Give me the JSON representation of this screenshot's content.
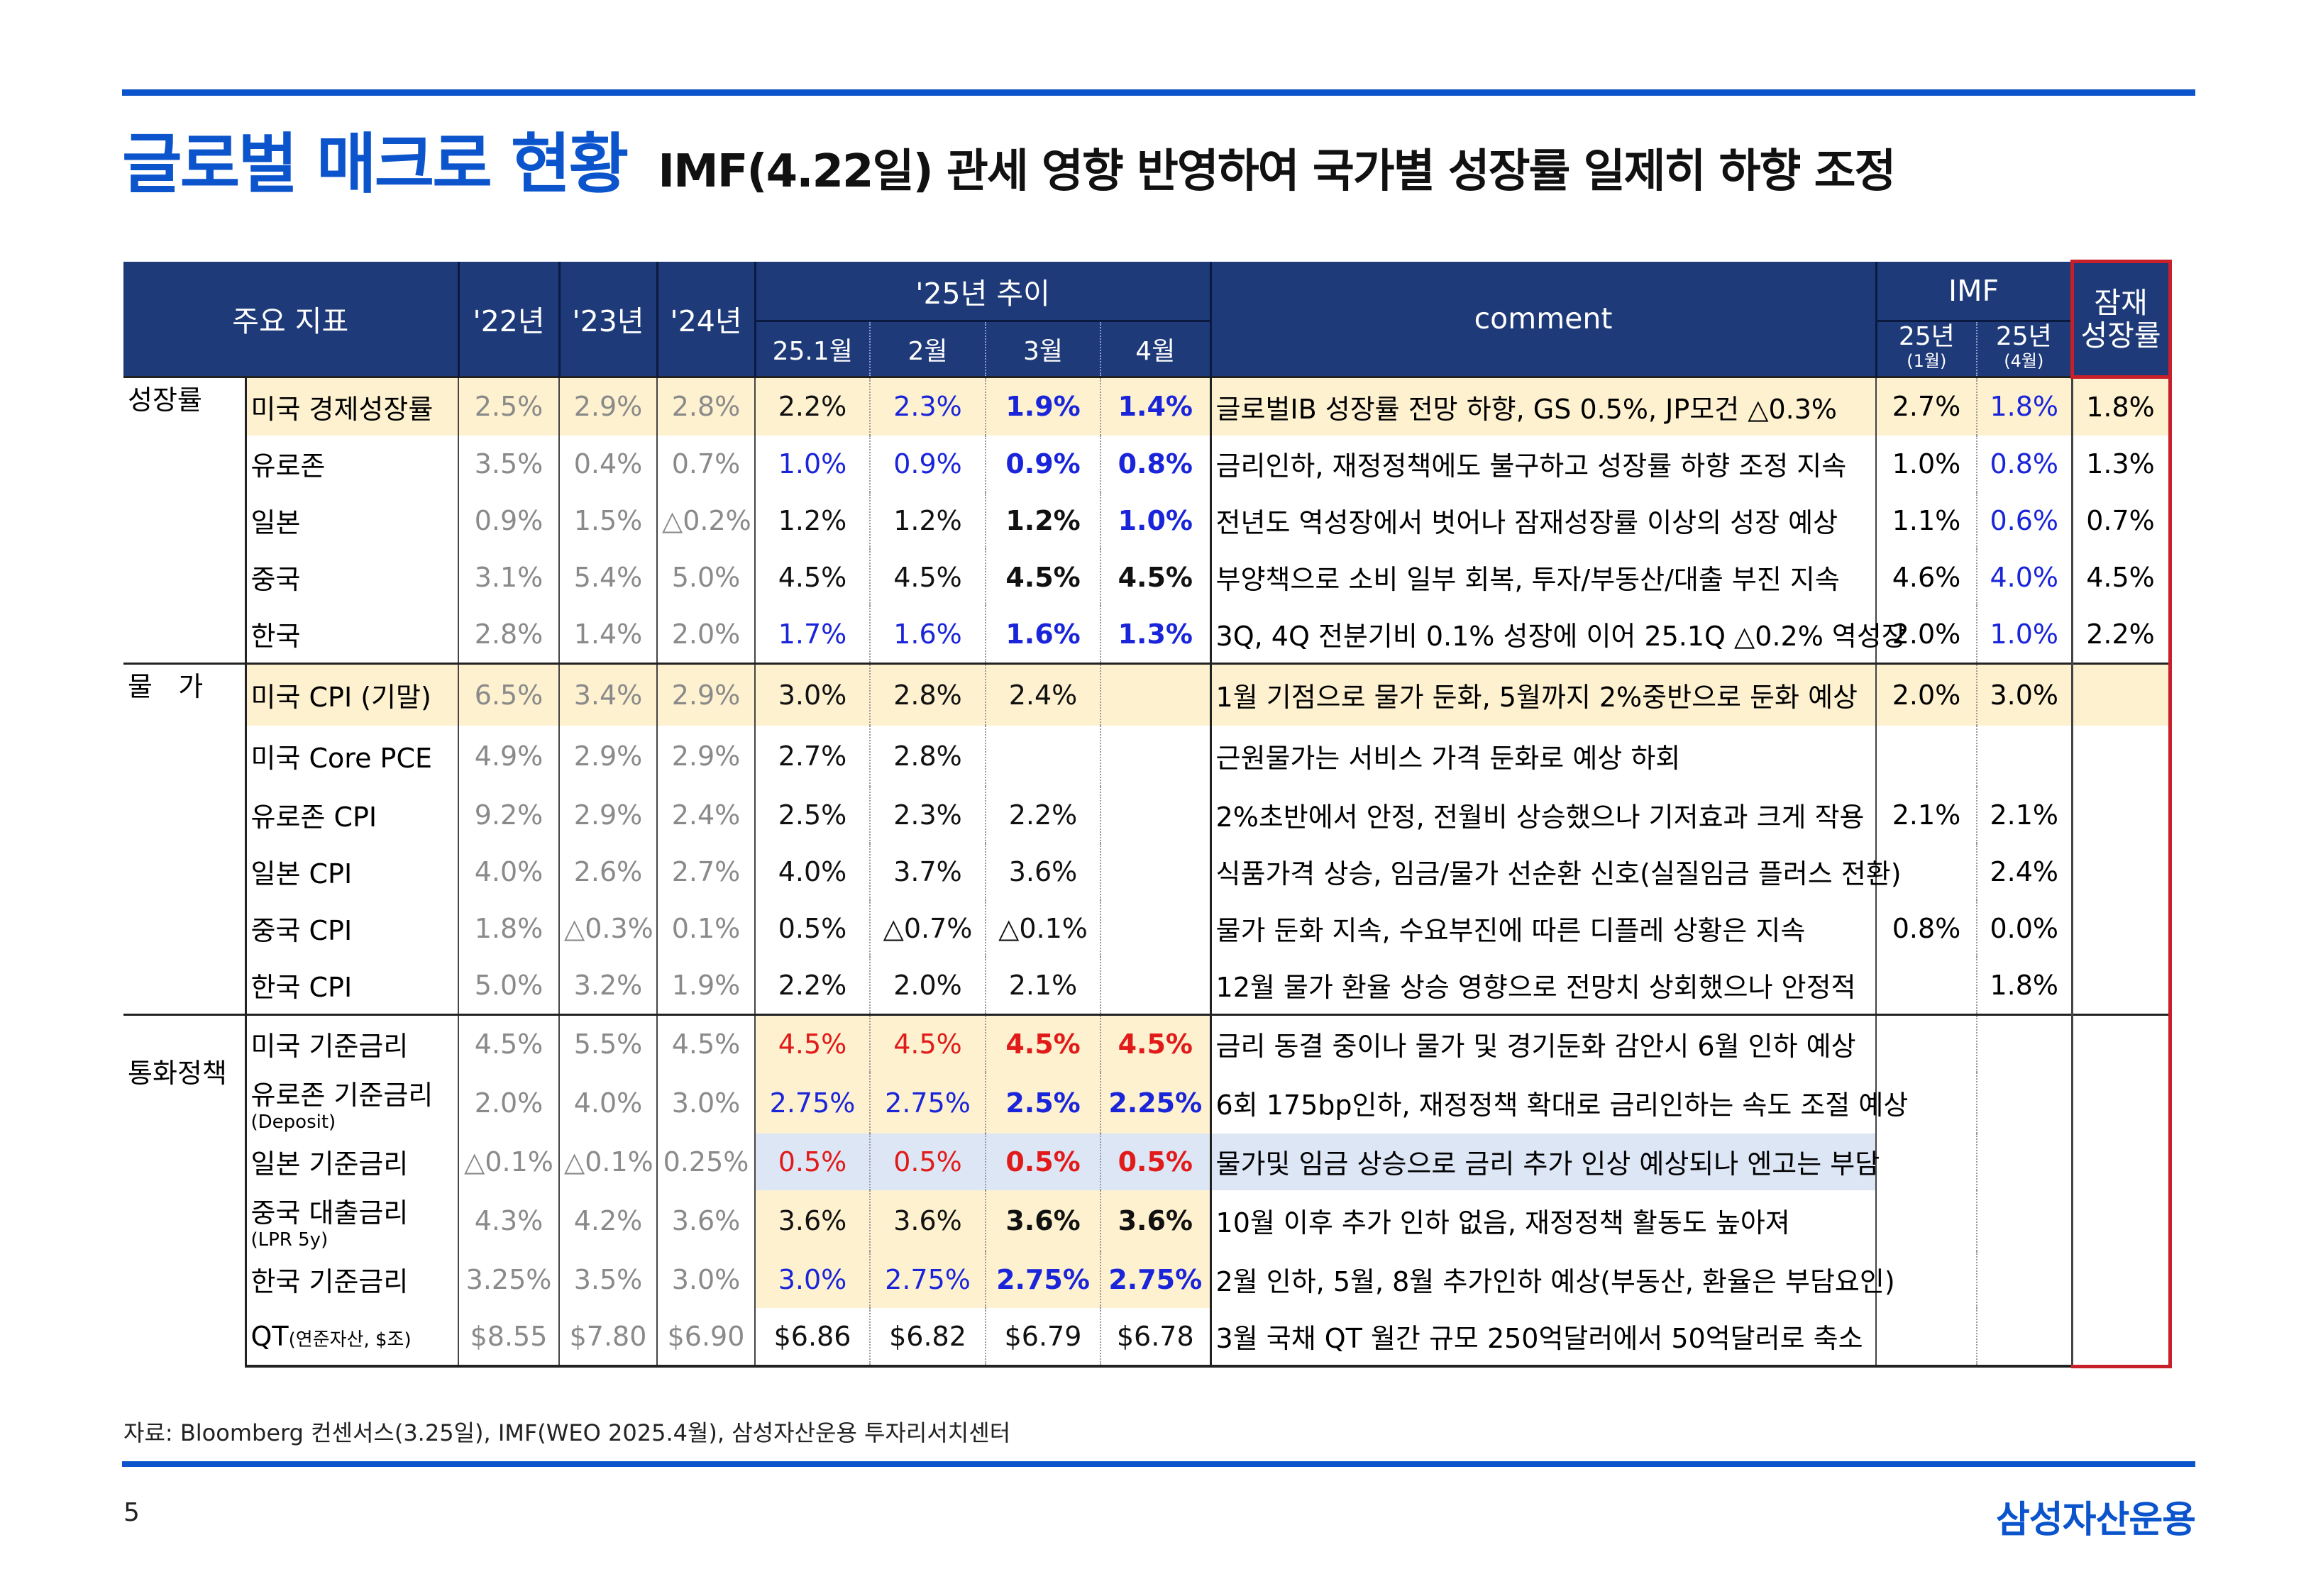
{
  "title": {
    "main": "글로벌 매크로 현황",
    "sub": "IMF(4.22일) 관세 영향 반영하여 국가별 성장률 일제히 하향 조정"
  },
  "header": {
    "indicator": "주요 지표",
    "y22": "'22년",
    "y23": "'23년",
    "y24": "'24년",
    "trend": "'25년 추이",
    "m1": "25.1월",
    "m2": "2월",
    "m3": "3월",
    "m4": "4월",
    "comment": "comment",
    "imf": "IMF",
    "imf1": "25년",
    "imf1_sub": "(1월)",
    "imf2": "25년",
    "imf2_sub": "(4월)",
    "potential": "잠재 성장률"
  },
  "categories": {
    "growth": "성장률",
    "price": "물   가",
    "policy": "통화정책"
  },
  "rows": [
    {
      "name": "미국 경제성장률",
      "sub": "",
      "y22": "2.5%",
      "y23": "2.9%",
      "y24": "2.8%",
      "m1": "2.2%",
      "m2": "2.3%",
      "m3": "1.9%",
      "m4": "1.4%",
      "comment": "글로벌IB 성장률 전망 하향, GS 0.5%, JP모건 △0.3%",
      "imf1": "2.7%",
      "imf2": "1.8%",
      "pot": "1.8%"
    },
    {
      "name": "유로존",
      "sub": "",
      "y22": "3.5%",
      "y23": "0.4%",
      "y24": "0.7%",
      "m1": "1.0%",
      "m2": "0.9%",
      "m3": "0.9%",
      "m4": "0.8%",
      "comment": "금리인하, 재정정책에도 불구하고 성장률 하향 조정 지속",
      "imf1": "1.0%",
      "imf2": "0.8%",
      "pot": "1.3%"
    },
    {
      "name": "일본",
      "sub": "",
      "y22": "0.9%",
      "y23": "1.5%",
      "y24": "△0.2%",
      "m1": "1.2%",
      "m2": "1.2%",
      "m3": "1.2%",
      "m4": "1.0%",
      "comment": "전년도 역성장에서 벗어나 잠재성장률 이상의 성장 예상",
      "imf1": "1.1%",
      "imf2": "0.6%",
      "pot": "0.7%"
    },
    {
      "name": "중국",
      "sub": "",
      "y22": "3.1%",
      "y23": "5.4%",
      "y24": "5.0%",
      "m1": "4.5%",
      "m2": "4.5%",
      "m3": "4.5%",
      "m4": "4.5%",
      "comment": "부양책으로 소비 일부 회복, 투자/부동산/대출 부진 지속",
      "imf1": "4.6%",
      "imf2": "4.0%",
      "pot": "4.5%"
    },
    {
      "name": "한국",
      "sub": "",
      "y22": "2.8%",
      "y23": "1.4%",
      "y24": "2.0%",
      "m1": "1.7%",
      "m2": "1.6%",
      "m3": "1.6%",
      "m4": "1.3%",
      "comment": "3Q, 4Q 전분기비 0.1% 성장에 이어 25.1Q △0.2% 역성장",
      "imf1": "2.0%",
      "imf2": "1.0%",
      "pot": "2.2%"
    },
    {
      "name": "미국 CPI (기말)",
      "sub": "",
      "y22": "6.5%",
      "y23": "3.4%",
      "y24": "2.9%",
      "m1": "3.0%",
      "m2": "2.8%",
      "m3": "2.4%",
      "m4": "",
      "comment": "1월 기점으로 물가 둔화, 5월까지 2%중반으로 둔화 예상",
      "imf1": "2.0%",
      "imf2": "3.0%",
      "pot": ""
    },
    {
      "name": "미국 Core PCE",
      "sub": "",
      "y22": "4.9%",
      "y23": "2.9%",
      "y24": "2.9%",
      "m1": "2.7%",
      "m2": "2.8%",
      "m3": "",
      "m4": "",
      "comment": "근원물가는 서비스 가격 둔화로 예상 하회",
      "imf1": "",
      "imf2": "",
      "pot": ""
    },
    {
      "name": "유로존 CPI",
      "sub": "",
      "y22": "9.2%",
      "y23": "2.9%",
      "y24": "2.4%",
      "m1": "2.5%",
      "m2": "2.3%",
      "m3": "2.2%",
      "m4": "",
      "comment": "2%초반에서 안정, 전월비 상승했으나 기저효과 크게 작용",
      "imf1": "2.1%",
      "imf2": "2.1%",
      "pot": ""
    },
    {
      "name": "일본 CPI",
      "sub": "",
      "y22": "4.0%",
      "y23": "2.6%",
      "y24": "2.7%",
      "m1": "4.0%",
      "m2": "3.7%",
      "m3": "3.6%",
      "m4": "",
      "comment": "식품가격 상승, 임금/물가 선순환 신호(실질임금 플러스 전환)",
      "imf1": "",
      "imf2": "2.4%",
      "pot": ""
    },
    {
      "name": "중국 CPI",
      "sub": "",
      "y22": "1.8%",
      "y23": "△0.3%",
      "y24": "0.1%",
      "m1": "0.5%",
      "m2": "△0.7%",
      "m3": "△0.1%",
      "m4": "",
      "comment": "물가 둔화 지속, 수요부진에 따른 디플레 상황은 지속",
      "imf1": "0.8%",
      "imf2": "0.0%",
      "pot": ""
    },
    {
      "name": "한국 CPI",
      "sub": "",
      "y22": "5.0%",
      "y23": "3.2%",
      "y24": "1.9%",
      "m1": "2.2%",
      "m2": "2.0%",
      "m3": "2.1%",
      "m4": "",
      "comment": "12월 물가 환율 상승 영향으로 전망치 상회했으나 안정적",
      "imf1": "",
      "imf2": "1.8%",
      "pot": ""
    },
    {
      "name": "미국 기준금리",
      "sub": "",
      "y22": "4.5%",
      "y23": "5.5%",
      "y24": "4.5%",
      "m1": "4.5%",
      "m2": "4.5%",
      "m3": "4.5%",
      "m4": "4.5%",
      "comment": "금리 동결 중이나 물가 및 경기둔화 감안시 6월 인하 예상",
      "imf1": "",
      "imf2": "",
      "pot": ""
    },
    {
      "name": "유로존 기준금리",
      "sub": "(Deposit)",
      "y22": "2.0%",
      "y23": "4.0%",
      "y24": "3.0%",
      "m1": "2.75%",
      "m2": "2.75%",
      "m3": "2.5%",
      "m4": "2.25%",
      "comment": "6회 175bp인하, 재정정책 확대로 금리인하는 속도 조절 예상",
      "imf1": "",
      "imf2": "",
      "pot": ""
    },
    {
      "name": "일본 기준금리",
      "sub": "",
      "y22": "△0.1%",
      "y23": "△0.1%",
      "y24": "0.25%",
      "m1": "0.5%",
      "m2": "0.5%",
      "m3": "0.5%",
      "m4": "0.5%",
      "comment": "물가및 임금 상승으로 금리 추가 인상 예상되나 엔고는 부담",
      "imf1": "",
      "imf2": "",
      "pot": ""
    },
    {
      "name": "중국 대출금리",
      "sub": "(LPR 5y)",
      "y22": "4.3%",
      "y23": "4.2%",
      "y24": "3.6%",
      "m1": "3.6%",
      "m2": "3.6%",
      "m3": "3.6%",
      "m4": "3.6%",
      "comment": "10월 이후 추가 인하 없음, 재정정책 활동도 높아져",
      "imf1": "",
      "imf2": "",
      "pot": ""
    },
    {
      "name": "한국 기준금리",
      "sub": "",
      "y22": "3.25%",
      "y23": "3.5%",
      "y24": "3.0%",
      "m1": "3.0%",
      "m2": "2.75%",
      "m3": "2.75%",
      "m4": "2.75%",
      "comment": "2월 인하, 5월, 8월 추가인하 예상(부동산, 환율은 부담요인)",
      "imf1": "",
      "imf2": "",
      "pot": ""
    },
    {
      "name": "QT",
      "sub": "(연준자산, $조)",
      "y22": "$8.55",
      "y23": "$7.80",
      "y24": "$6.90",
      "m1": "$6.86",
      "m2": "$6.82",
      "m3": "$6.79",
      "m4": "$6.78",
      "comment": "3월 국채 QT 월간 규모 250억달러에서 50억달러로 축소",
      "imf1": "",
      "imf2": "",
      "pot": ""
    }
  ],
  "source": "자료: Bloomberg 컨센서스(3.25일), IMF(WEO 2025.4월), 삼성자산운용 투자리서치센터",
  "page_number": "5",
  "logo": "삼성자산운용",
  "colors": {
    "brand_blue": "#0b54cc",
    "header_navy": "#1f3a78",
    "highlight_yellow": "#fdf1cf",
    "highlight_blue": "#dde6f5",
    "red": "#e11a1a",
    "blue": "#1a25d9",
    "frame_red": "#c8202a"
  }
}
